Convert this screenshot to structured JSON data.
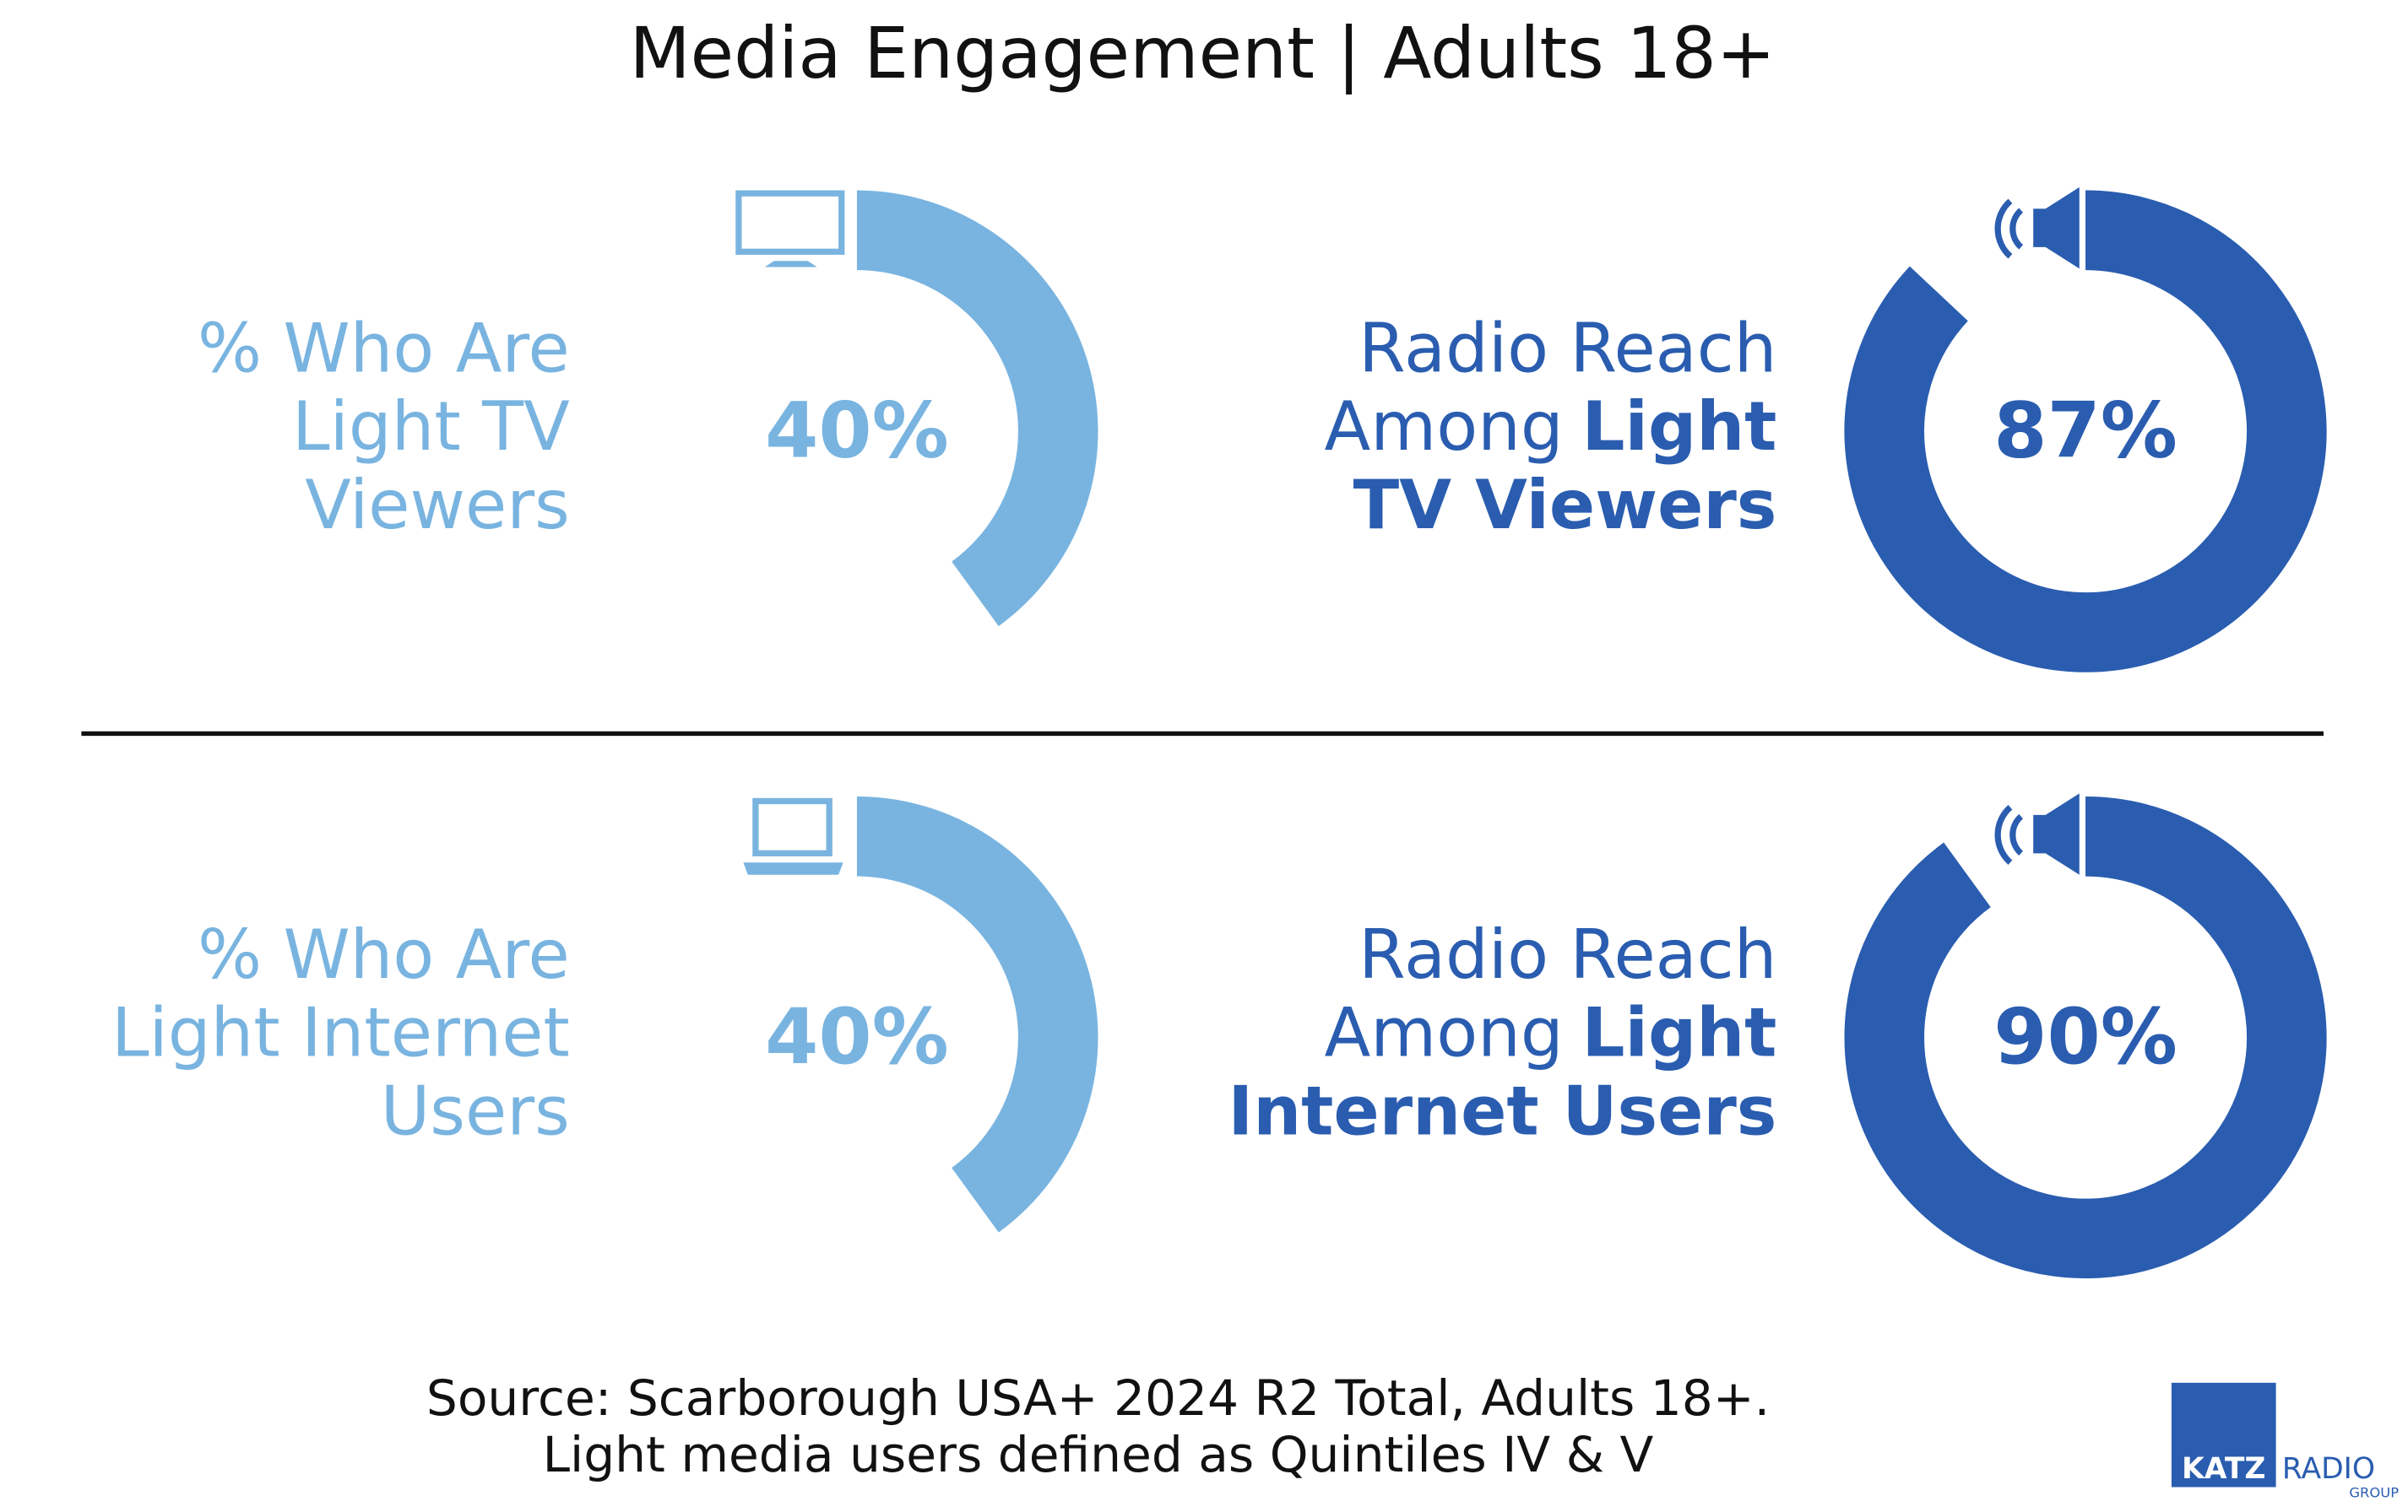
{
  "title": "Media Engagement | Adults 18+",
  "chart_data": [
    {
      "type": "donut",
      "color": "#79b4e0",
      "label_lines": [
        [
          {
            "text": "% Who Are"
          }
        ],
        [
          {
            "text": "Light TV"
          }
        ],
        [
          {
            "text": "Viewers"
          }
        ]
      ],
      "values": [
        40
      ],
      "value_labels": [
        "40%"
      ]
    },
    {
      "type": "donut",
      "color": "#2a5db0",
      "label_lines": [
        [
          {
            "text": "Radio Reach"
          }
        ],
        [
          {
            "text": "Among"
          },
          {
            "text": "Light",
            "bold": true
          }
        ],
        [
          {
            "text": "TV Viewers",
            "bold": true
          }
        ]
      ],
      "values": [
        87
      ],
      "value_labels": [
        "87%"
      ]
    },
    {
      "type": "donut",
      "color": "#79b4e0",
      "label_lines": [
        [
          {
            "text": "% Who Are"
          }
        ],
        [
          {
            "text": "Light Internet"
          }
        ],
        [
          {
            "text": "Users"
          }
        ]
      ],
      "values": [
        40
      ],
      "value_labels": [
        "40%"
      ]
    },
    {
      "type": "donut",
      "color": "#2a5db0",
      "label_lines": [
        [
          {
            "text": "Radio Reach"
          }
        ],
        [
          {
            "text": "Among"
          },
          {
            "text": "Light",
            "bold": true
          }
        ],
        [
          {
            "text": "Internet Users",
            "bold": true
          }
        ]
      ],
      "values": [
        90
      ],
      "value_labels": [
        "90%"
      ]
    }
  ],
  "source_lines": [
    "Source: Scarborough USA+ 2024 R2 Total, Adults 18+.",
    "Light media users defined as Quintiles IV & V"
  ],
  "logo": {
    "name": "KATZ",
    "word": "RADIO",
    "sub": "GROUP"
  }
}
